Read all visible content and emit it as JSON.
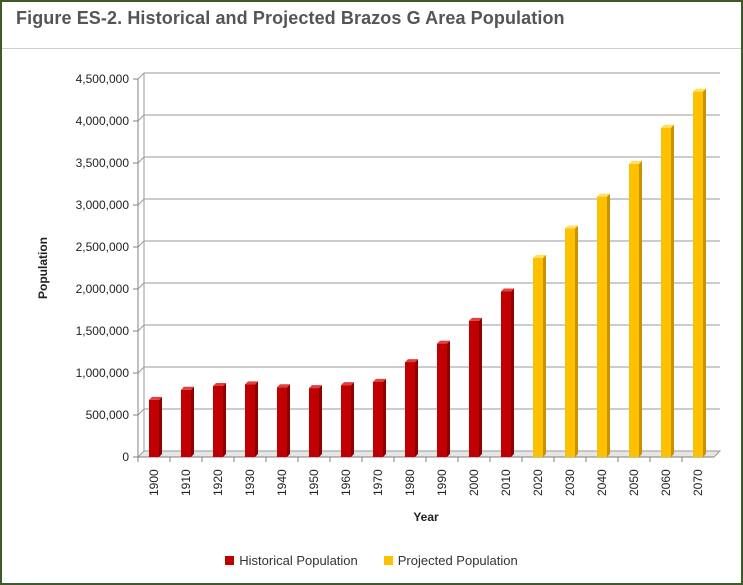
{
  "title": "Figure ES-2. Historical and Projected Brazos G Area Population",
  "chart_data": {
    "type": "bar",
    "title": "Figure ES-2. Historical and Projected Brazos G Area Population",
    "xlabel": "Year",
    "ylabel": "Population",
    "ylim": [
      0,
      4500000
    ],
    "ytick_step": 500000,
    "ytick_labels": [
      "0",
      "500,000",
      "1,000,000",
      "1,500,000",
      "2,000,000",
      "2,500,000",
      "3,000,000",
      "3,500,000",
      "4,000,000",
      "4,500,000"
    ],
    "grid": true,
    "legend_position": "bottom",
    "categories": [
      "1900",
      "1910",
      "1920",
      "1930",
      "1940",
      "1950",
      "1960",
      "1970",
      "1980",
      "1990",
      "2000",
      "2010",
      "2020",
      "2030",
      "2040",
      "2050",
      "2060",
      "2070"
    ],
    "series": [
      {
        "name": "Historical Population",
        "color": "#c00000",
        "values": [
          680000,
          800000,
          845000,
          865000,
          830000,
          820000,
          855000,
          895000,
          1130000,
          1350000,
          1620000,
          1970000,
          null,
          null,
          null,
          null,
          null,
          null
        ]
      },
      {
        "name": "Projected Population",
        "color": "#ffc000",
        "values": [
          null,
          null,
          null,
          null,
          null,
          null,
          null,
          null,
          null,
          null,
          null,
          null,
          2370000,
          2720000,
          3100000,
          3490000,
          3920000,
          4350000
        ]
      }
    ]
  }
}
